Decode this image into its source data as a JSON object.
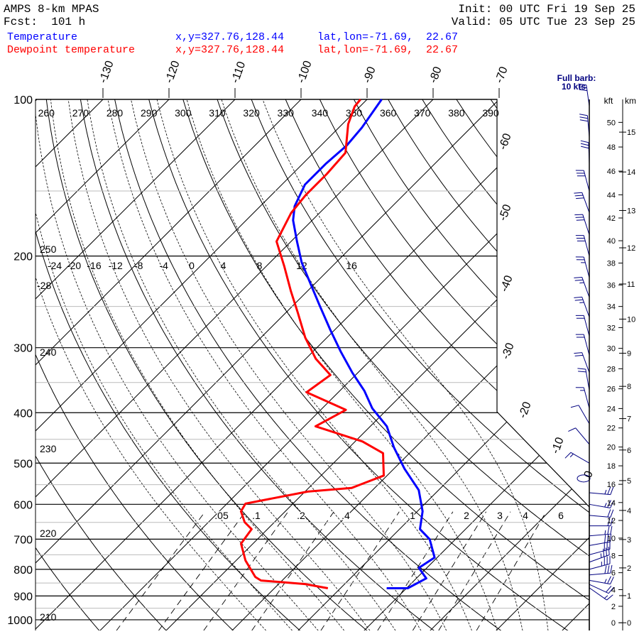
{
  "header": {
    "title": "AMPS 8-km MPAS",
    "fcst": "Fcst:  101 h",
    "init": "Init: 00 UTC Fri 19 Sep 25",
    "valid": "Valid: 05 UTC Tue 23 Sep 25"
  },
  "legend": [
    {
      "label": "Temperature",
      "xy": "x,y=327.76,128.44",
      "latlon": "lat,lon=-71.69,  22.67",
      "color": "#0000ff"
    },
    {
      "label": "Dewpoint temperature",
      "xy": "x,y=327.76,128.44",
      "latlon": "lat,lon=-71.69,  22.67",
      "color": "#ff0000"
    }
  ],
  "wind_legend": {
    "line1": "Full barb:",
    "line2": "10 kts",
    "color": "#000080"
  },
  "height_axes": {
    "kft_label": "kft",
    "km_label": "km"
  },
  "chart_data": {
    "type": "skew-t",
    "pressure_levels": [
      100,
      200,
      300,
      400,
      500,
      600,
      700,
      800,
      900,
      1000
    ],
    "minor_pressure_levels": [
      150,
      250,
      350,
      450,
      550,
      650,
      750,
      850,
      950
    ],
    "pressure_range": [
      100,
      1050
    ],
    "isotherm_labels_top": [
      -130,
      -120,
      -110,
      -100,
      -90,
      -80,
      -70
    ],
    "isotherm_labels_right": [
      -60,
      -50,
      -40,
      -30,
      -20,
      -10,
      0
    ],
    "dry_adiabat_labels_top": [
      260,
      270,
      280,
      290,
      300,
      310,
      320,
      330,
      340,
      350,
      360,
      370,
      380,
      390
    ],
    "dry_adiabat_labels_left": [
      250,
      240,
      230,
      220,
      210
    ],
    "moist_adiabat_labels": [
      -24,
      -20,
      -16,
      -12,
      -8,
      -4,
      0,
      4,
      8,
      12,
      16
    ],
    "moist_extra_label": "-28",
    "mixing_ratio_labels": [
      ".05",
      ".1",
      ".2",
      ".4",
      "1",
      "2",
      "3",
      "4",
      "6"
    ],
    "mixing_ratio_values": [
      0.05,
      0.1,
      0.2,
      0.4,
      1,
      2,
      3,
      4,
      6
    ],
    "kft_ticks": [
      0,
      2,
      4,
      6,
      8,
      10,
      12,
      14,
      16,
      18,
      20,
      22,
      24,
      26,
      28,
      30,
      32,
      34,
      36,
      38,
      40,
      42,
      44,
      46,
      48,
      50
    ],
    "km_ticks": [
      0,
      1,
      2,
      3,
      4,
      5,
      6,
      7,
      8,
      9,
      10,
      11,
      12,
      13,
      14,
      15
    ],
    "series": [
      {
        "name": "Temperature",
        "color": "#0000ff",
        "points": [
          [
            100,
            -87.8
          ],
          [
            113.4,
            -86.5
          ],
          [
            122.6,
            -86.1
          ],
          [
            132.7,
            -86.5
          ],
          [
            145.8,
            -86.5
          ],
          [
            160.4,
            -84.8
          ],
          [
            170.7,
            -82.9
          ],
          [
            187.5,
            -79.1
          ],
          [
            205.8,
            -75.2
          ],
          [
            226.3,
            -70.6
          ],
          [
            248.8,
            -66.0
          ],
          [
            277.6,
            -60.6
          ],
          [
            305.2,
            -55.8
          ],
          [
            335.4,
            -50.8
          ],
          [
            362.9,
            -46.3
          ],
          [
            392.5,
            -42.4
          ],
          [
            424.8,
            -37.5
          ],
          [
            466.7,
            -33.2
          ],
          [
            512.6,
            -28.4
          ],
          [
            563.4,
            -23.0
          ],
          [
            619.0,
            -19.2
          ],
          [
            669.7,
            -16.9
          ],
          [
            700.4,
            -13.9
          ],
          [
            759.2,
            -10.4
          ],
          [
            794.8,
            -11.2
          ],
          [
            832.5,
            -8.5
          ],
          [
            869.8,
            -9.8
          ],
          [
            869.8,
            -13.0
          ]
        ]
      },
      {
        "name": "Dewpoint temperature",
        "color": "#ff0000",
        "points": [
          [
            100,
            -91.0
          ],
          [
            103.2,
            -90.8
          ],
          [
            111.6,
            -89.1
          ],
          [
            126.6,
            -85.2
          ],
          [
            139.1,
            -84.8
          ],
          [
            152.8,
            -84.8
          ],
          [
            165.3,
            -84.3
          ],
          [
            187.5,
            -82.2
          ],
          [
            209.1,
            -77.3
          ],
          [
            233.6,
            -72.5
          ],
          [
            256.9,
            -68.2
          ],
          [
            286.8,
            -63.3
          ],
          [
            315.0,
            -58.5
          ],
          [
            338.6,
            -53.8
          ],
          [
            365.5,
            -54.8
          ],
          [
            395.0,
            -46.2
          ],
          [
            424.8,
            -48.3
          ],
          [
            454.3,
            -38.9
          ],
          [
            478.5,
            -34.0
          ],
          [
            528.3,
            -30.5
          ],
          [
            558.2,
            -33.5
          ],
          [
            567.2,
            -39.6
          ],
          [
            598.0,
            -47.2
          ],
          [
            619.0,
            -46.7
          ],
          [
            649.4,
            -44.5
          ],
          [
            669.7,
            -42.4
          ],
          [
            714.1,
            -41.8
          ],
          [
            769.0,
            -38.6
          ],
          [
            827.5,
            -34.6
          ],
          [
            840.6,
            -33.2
          ],
          [
            853.9,
            -26.0
          ],
          [
            869.8,
            -21.9
          ]
        ]
      }
    ],
    "winds": [
      {
        "p": 103,
        "dir": 352,
        "kt": 30
      },
      {
        "p": 118,
        "dir": 355,
        "kt": 30
      },
      {
        "p": 133,
        "dir": 358,
        "kt": 30
      },
      {
        "p": 150,
        "dir": 345,
        "kt": 30
      },
      {
        "p": 165,
        "dir": 340,
        "kt": 30
      },
      {
        "p": 182,
        "dir": 342,
        "kt": 30
      },
      {
        "p": 200,
        "dir": 345,
        "kt": 30
      },
      {
        "p": 220,
        "dir": 345,
        "kt": 25
      },
      {
        "p": 240,
        "dir": 340,
        "kt": 25
      },
      {
        "p": 262,
        "dir": 340,
        "kt": 25
      },
      {
        "p": 285,
        "dir": 345,
        "kt": 20
      },
      {
        "p": 310,
        "dir": 345,
        "kt": 20
      },
      {
        "p": 335,
        "dir": 340,
        "kt": 20
      },
      {
        "p": 362,
        "dir": 350,
        "kt": 20
      },
      {
        "p": 392,
        "dir": 345,
        "kt": 15
      },
      {
        "p": 420,
        "dir": 330,
        "kt": 10
      },
      {
        "p": 460,
        "dir": 320,
        "kt": 10
      },
      {
        "p": 500,
        "dir": 300,
        "kt": 15
      },
      {
        "p": 535,
        "dir": 0,
        "kt": 0
      },
      {
        "p": 570,
        "dir": 95,
        "kt": 25
      },
      {
        "p": 600,
        "dir": 100,
        "kt": 25
      },
      {
        "p": 630,
        "dir": 95,
        "kt": 20
      },
      {
        "p": 660,
        "dir": 90,
        "kt": 20
      },
      {
        "p": 690,
        "dir": 85,
        "kt": 25
      },
      {
        "p": 720,
        "dir": 80,
        "kt": 30
      },
      {
        "p": 750,
        "dir": 75,
        "kt": 30
      },
      {
        "p": 775,
        "dir": 70,
        "kt": 35
      },
      {
        "p": 800,
        "dir": 75,
        "kt": 35
      },
      {
        "p": 820,
        "dir": 85,
        "kt": 30
      },
      {
        "p": 840,
        "dir": 100,
        "kt": 25
      },
      {
        "p": 855,
        "dir": 115,
        "kt": 20
      },
      {
        "p": 868,
        "dir": 125,
        "kt": 15
      }
    ]
  }
}
